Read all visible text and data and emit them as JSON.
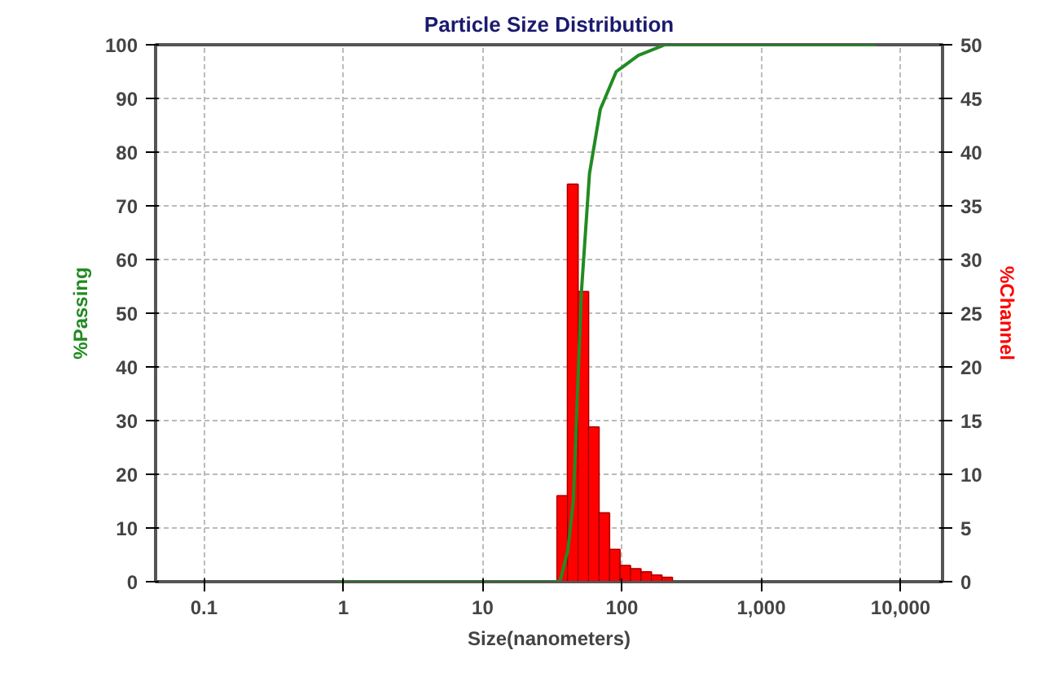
{
  "chart_data": {
    "type": "histogram",
    "title": "Particle Size Distribution",
    "xlabel": "Size(nanometers)",
    "ylabel": "%Passing",
    "y2label": "%Channel",
    "log": "x",
    "grid": true,
    "xlim": [
      0.045,
      20000
    ],
    "xticks": [
      0.1,
      1,
      10,
      100,
      {
        "value": 1000,
        "label": "1,000"
      },
      {
        "value": 10000,
        "label": "10,000"
      }
    ],
    "ylim": [
      0,
      100
    ],
    "yticks": [
      0,
      10,
      20,
      30,
      40,
      50,
      60,
      70,
      80,
      90,
      100
    ],
    "y2lim": [
      0,
      50
    ],
    "y2ticks": [
      0,
      5,
      10,
      15,
      20,
      25,
      30,
      35,
      40,
      45,
      50
    ],
    "series": [
      {
        "axis": "y2",
        "color": "#ff0000",
        "bins": [
          0.83,
          34.25,
          40.7,
          48.4,
          57.55,
          68.44,
          81.38,
          96.77,
          115.1,
          136.8,
          162.7,
          193.5,
          230.1,
          6540
        ],
        "values": [
          0,
          8,
          37,
          27,
          14.4,
          6.4,
          3,
          1.5,
          1.2,
          0.9,
          0.6,
          0.4,
          0
        ]
      },
      {
        "type": "line",
        "color": "#228b22",
        "x": [
          0.9,
          35.9,
          41,
          44.8,
          51.2,
          58.5,
          70,
          91,
          131,
          204,
          243,
          6600
        ],
        "values": [
          0,
          0,
          6,
          15,
          54,
          76,
          88,
          95,
          98,
          100,
          100,
          100
        ]
      }
    ]
  }
}
